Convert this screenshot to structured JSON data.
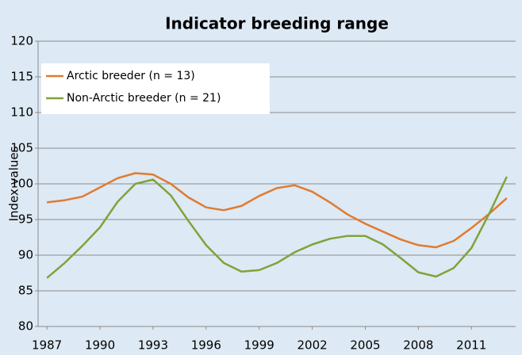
{
  "chart_data": {
    "type": "line",
    "title": "Indicator breeding range",
    "ylabel": "Index values",
    "x": [
      1987,
      1988,
      1989,
      1990,
      1991,
      1992,
      1993,
      1994,
      1995,
      1996,
      1997,
      1998,
      1999,
      2000,
      2001,
      2002,
      2003,
      2004,
      2005,
      2006,
      2007,
      2008,
      2009,
      2010,
      2011,
      2012,
      2013
    ],
    "series": [
      {
        "name": "Arctic breeder (n = 13)",
        "color": "#e07b2f",
        "values": [
          97.4,
          97.7,
          98.2,
          99.5,
          100.8,
          101.5,
          101.3,
          100,
          98.1,
          96.7,
          96.3,
          96.9,
          98.3,
          99.4,
          99.8,
          98.9,
          97.4,
          95.7,
          94.4,
          93.3,
          92.2,
          91.4,
          91.1,
          92,
          93.8,
          95.8,
          98
        ]
      },
      {
        "name": "Non-Arctic breeder (n = 21)",
        "color": "#7fa33a",
        "values": [
          86.8,
          88.9,
          91.3,
          93.9,
          97.5,
          100,
          100.6,
          98.4,
          94.8,
          91.4,
          88.9,
          87.7,
          87.9,
          88.9,
          90.4,
          91.5,
          92.3,
          92.7,
          92.7,
          91.5,
          89.6,
          87.6,
          87,
          88.2,
          91,
          95.8,
          101
        ]
      }
    ],
    "xlim": [
      1986.5,
      2013.5
    ],
    "xticks": [
      1987,
      1990,
      1993,
      1996,
      1999,
      2002,
      2005,
      2008,
      2011
    ],
    "ylim": [
      80,
      120
    ],
    "yticks": [
      80,
      85,
      90,
      95,
      100,
      105,
      110,
      115,
      120
    ],
    "grid": true,
    "legend": "upper left"
  }
}
